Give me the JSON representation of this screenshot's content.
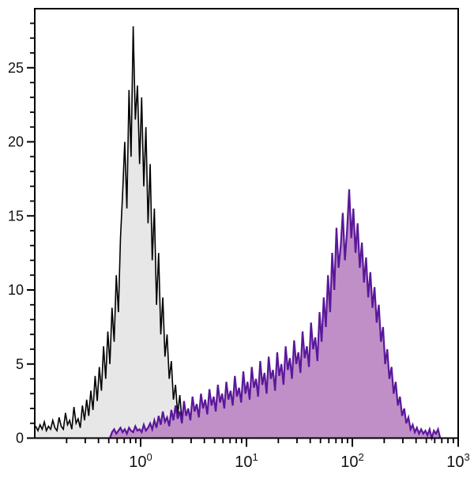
{
  "figure": {
    "background_color": "#ffffff",
    "frame_color": "#000000"
  },
  "chart_data": {
    "type": "area",
    "subtype": "flow-cytometry-histogram-overlay",
    "title": "",
    "xlabel": "",
    "ylabel": "",
    "grid": false,
    "legend": "none",
    "x_axis": {
      "scale": "log10",
      "min": 0.1,
      "max": 1000,
      "major_ticks": [
        {
          "base": "10",
          "exp": "0",
          "value": 1
        },
        {
          "base": "10",
          "exp": "1",
          "value": 10
        },
        {
          "base": "10",
          "exp": "2",
          "value": 100
        },
        {
          "base": "10",
          "exp": "3",
          "value": 1000
        }
      ],
      "minor_tick_mantissas": [
        2,
        3,
        4,
        5,
        6,
        7,
        8,
        9
      ]
    },
    "y_axis": {
      "min": 0,
      "max": 29,
      "major_ticks": [
        0,
        5,
        10,
        15,
        20,
        25
      ],
      "minor_step": 1
    },
    "bins": {
      "log_start": -1,
      "log_step": 0.02,
      "count": 200
    },
    "series": [
      {
        "name": "gray-filled-histogram",
        "stroke": "#000000",
        "fill": "#e7e7e7",
        "stroke_width": 1.6,
        "peak_value": 27.8,
        "values": [
          0.8,
          0.5,
          0.9,
          0.6,
          1.1,
          0.5,
          0.8,
          0.6,
          1.2,
          0.7,
          0.5,
          1.4,
          0.8,
          0.6,
          1.7,
          0.9,
          1.2,
          0.6,
          2.1,
          1.0,
          1.3,
          0.7,
          2.2,
          1.2,
          2.6,
          1.5,
          3.2,
          1.9,
          4.2,
          2.5,
          4.8,
          3.2,
          6.2,
          4.0,
          7.2,
          5.0,
          8.8,
          6.5,
          11.0,
          8.5,
          13.5,
          16.5,
          20.0,
          15.5,
          23.5,
          19.0,
          27.8,
          21.5,
          23.8,
          18.5,
          23.0,
          17.0,
          21.0,
          14.5,
          18.5,
          12.0,
          15.5,
          9.0,
          12.5,
          7.0,
          9.5,
          5.5,
          7.0,
          4.0,
          5.2,
          2.6,
          3.6,
          1.6,
          2.9,
          1.2,
          2.2,
          0.8,
          0.4,
          0,
          0,
          0,
          0,
          0,
          0,
          0,
          0,
          0,
          0,
          0,
          0,
          0,
          0,
          0,
          0,
          0,
          0,
          0,
          0,
          0,
          0,
          0,
          0,
          0,
          0,
          0,
          0,
          0,
          0,
          0,
          0,
          0,
          0,
          0,
          0,
          0,
          0,
          0,
          0,
          0,
          0,
          0,
          0,
          0,
          0,
          0,
          0,
          0,
          0,
          0,
          0,
          0,
          0,
          0,
          0,
          0,
          0,
          0,
          0,
          0,
          0,
          0,
          0,
          0,
          0,
          0,
          0,
          0,
          0,
          0,
          0,
          0,
          0,
          0,
          0,
          0,
          0,
          0,
          0,
          0,
          0,
          0,
          0,
          0,
          0,
          0,
          0,
          0,
          0,
          0,
          0,
          0,
          0,
          0,
          0,
          0,
          0,
          0,
          0,
          0,
          0,
          0,
          0,
          0,
          0,
          0,
          0,
          0,
          0,
          0,
          0,
          0,
          0,
          0,
          0,
          0,
          0,
          0,
          0,
          0,
          0,
          0,
          0,
          0,
          0,
          0
        ]
      },
      {
        "name": "purple-filled-histogram",
        "stroke": "#5a189a",
        "fill": "#c08fc7",
        "stroke_width": 2.2,
        "peak_value": 16.8,
        "values": [
          0,
          0,
          0,
          0,
          0,
          0,
          0,
          0,
          0,
          0,
          0,
          0,
          0,
          0,
          0,
          0,
          0,
          0,
          0,
          0,
          0,
          0,
          0,
          0,
          0,
          0,
          0,
          0,
          0,
          0,
          0,
          0,
          0,
          0,
          0,
          0,
          0.4,
          0.6,
          0.3,
          0.5,
          0.7,
          0.4,
          0.6,
          0.3,
          0.7,
          0.5,
          0.4,
          0.8,
          0.5,
          0.6,
          0.4,
          0.9,
          0.5,
          0.7,
          1.0,
          0.6,
          1.2,
          0.7,
          1.5,
          0.9,
          1.8,
          1.1,
          1.4,
          0.8,
          1.9,
          1.2,
          2.2,
          1.3,
          1.8,
          1.0,
          2.5,
          1.5,
          2.0,
          1.2,
          2.8,
          1.8,
          2.3,
          1.4,
          3.0,
          2.0,
          2.6,
          1.6,
          3.3,
          2.2,
          2.8,
          1.8,
          3.6,
          2.4,
          3.0,
          2.0,
          3.8,
          2.6,
          3.2,
          2.2,
          4.2,
          2.8,
          3.4,
          2.4,
          4.5,
          3.0,
          3.8,
          2.6,
          4.8,
          3.4,
          4.0,
          2.8,
          5.2,
          3.6,
          4.4,
          3.0,
          5.5,
          4.0,
          4.6,
          3.2,
          5.8,
          4.2,
          5.0,
          3.6,
          6.2,
          4.6,
          5.4,
          4.0,
          6.6,
          5.0,
          5.8,
          4.4,
          7.2,
          5.4,
          6.2,
          4.8,
          7.8,
          6.0,
          6.8,
          5.2,
          8.5,
          6.5,
          9.5,
          7.5,
          11.0,
          8.5,
          12.5,
          10.0,
          14.2,
          11.5,
          13.0,
          15.2,
          12.0,
          14.0,
          16.8,
          13.5,
          15.5,
          12.5,
          14.5,
          11.5,
          13.2,
          10.5,
          12.2,
          9.5,
          11.2,
          8.8,
          10.2,
          7.8,
          9.0,
          6.5,
          7.5,
          5.0,
          6.0,
          4.0,
          4.8,
          3.0,
          3.8,
          2.2,
          2.8,
          1.5,
          2.0,
          1.0,
          1.4,
          0.6,
          0.9,
          0.4,
          0.7,
          0.3,
          0.6,
          0.3,
          0.5,
          0.2,
          0.6,
          0,
          0.5,
          0.3,
          0.6,
          0,
          0,
          0,
          0,
          0,
          0,
          0,
          0,
          0
        ]
      }
    ]
  }
}
